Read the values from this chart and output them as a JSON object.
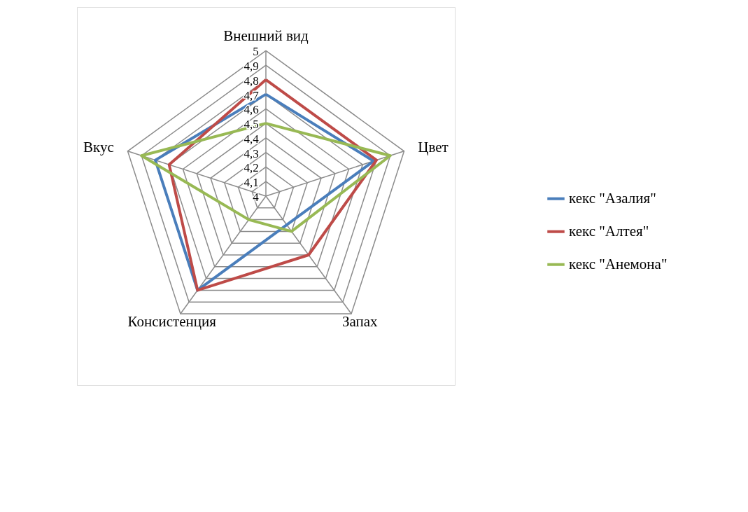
{
  "chart_data": {
    "type": "radar",
    "categories": [
      "Внешний вид",
      "Цвет",
      "Запах",
      "Консистенция",
      "Вкус"
    ],
    "series": [
      {
        "name": "кекс \"Азалия\"",
        "color": "#4a7ebb",
        "values": [
          4.7,
          4.78,
          null,
          4.8,
          4.8
        ]
      },
      {
        "name": "кекс \"Алтея\"",
        "color": "#be4b48",
        "values": [
          4.8,
          4.8,
          4.5,
          4.8,
          4.7
        ]
      },
      {
        "name": "кекс \"Анемона\"",
        "color": "#98b954",
        "values": [
          4.5,
          4.9,
          4.3,
          4.2,
          4.9
        ]
      }
    ],
    "ylim": [
      4,
      5
    ],
    "yticks": [
      4,
      {
        "value": 4.1,
        "label": "4,1"
      },
      {
        "value": 4.2,
        "label": "4,2"
      },
      {
        "value": 4.3,
        "label": "4,3"
      },
      {
        "value": 4.4,
        "label": "4,4"
      },
      {
        "value": 4.5,
        "label": "4,5"
      },
      {
        "value": 4.6,
        "label": "4,6"
      },
      {
        "value": 4.7,
        "label": "4,7"
      },
      {
        "value": 4.8,
        "label": "4,8"
      },
      {
        "value": 4.9,
        "label": "4,9"
      },
      5
    ],
    "grid": true,
    "legend": "right",
    "line_style": "solid"
  }
}
